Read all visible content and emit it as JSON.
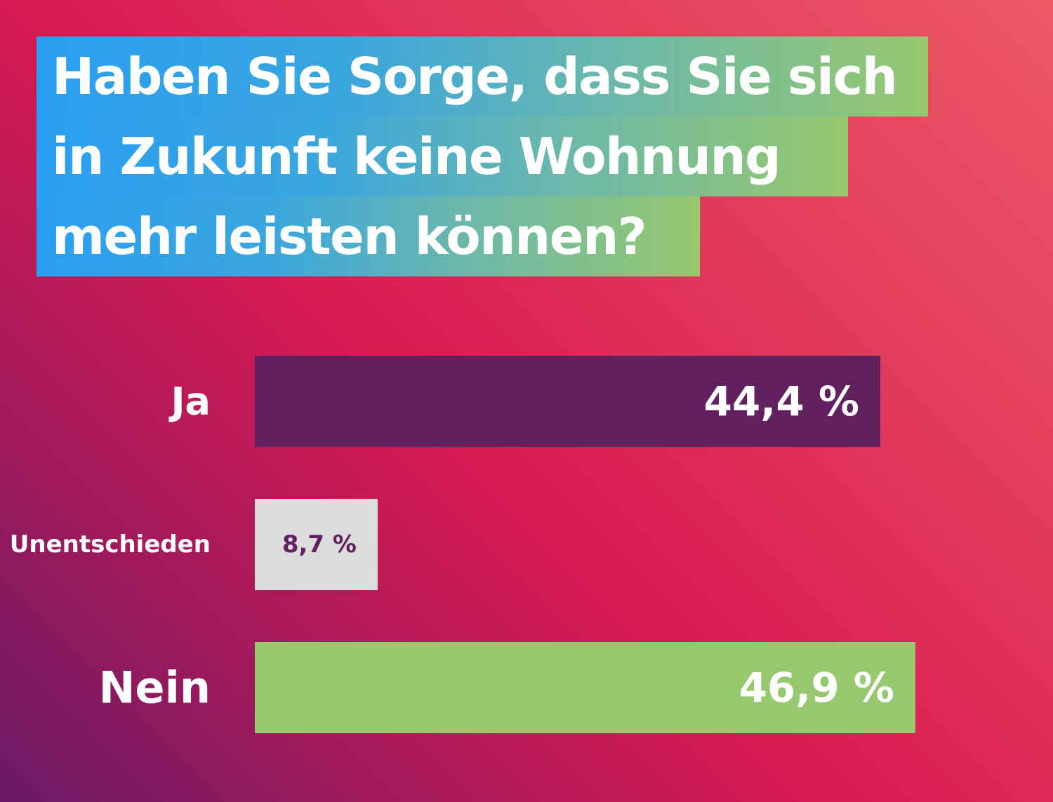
{
  "chart_data": {
    "type": "bar",
    "orientation": "horizontal",
    "title_lines": [
      "Haben Sie Sorge, dass Sie sich",
      "in Zukunft keine Wohnung",
      "mehr leisten können?"
    ],
    "categories": [
      "Ja",
      "Unentschieden",
      "Nein"
    ],
    "values": [
      44.4,
      8.7,
      46.9
    ],
    "value_labels": [
      "44,4 %",
      "8,7 %",
      "46,9 %"
    ],
    "unit": "%",
    "xlim": [
      0,
      46.9
    ],
    "grid": false,
    "legend": false,
    "colors": {
      "bars": [
        "#63205e",
        "#dcdcdc",
        "#96c86e"
      ],
      "value_text": [
        "#ffffff",
        "#63205e",
        "#ffffff"
      ],
      "category_text": "#ffffff",
      "title_gradient": [
        "#2a9ef2",
        "#96c86e"
      ]
    }
  }
}
